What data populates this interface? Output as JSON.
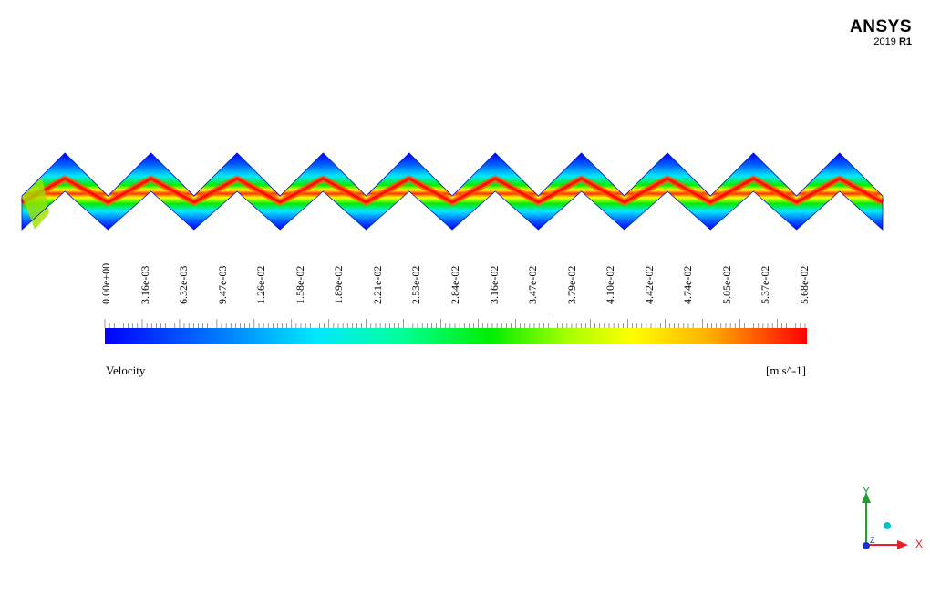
{
  "logo": {
    "brand": "ANSYS",
    "version_year": "2019",
    "version_release": "R1"
  },
  "legend": {
    "variable": "Velocity",
    "unit": "[m s^-1]",
    "ticks": [
      "0.00e+00",
      "3.16e-03",
      "6.32e-03",
      "9.47e-03",
      "1.26e-02",
      "1.58e-02",
      "1.89e-02",
      "2.21e-02",
      "2.53e-02",
      "2.84e-02",
      "3.16e-02",
      "3.47e-02",
      "3.79e-02",
      "4.10e-02",
      "4.42e-02",
      "4.74e-02",
      "5.05e-02",
      "5.37e-02",
      "5.68e-02"
    ],
    "colormap": [
      "#0000ff",
      "#00e8ff",
      "#00ee00",
      "#ffff00",
      "#ff0000"
    ]
  },
  "channel": {
    "zigzag_periods": 10
  },
  "axes": {
    "x": "X",
    "y": "Y",
    "z": "Z",
    "x_color": "#e8202a",
    "y_color": "#1fa02a",
    "z_color": "#1c2fd6"
  }
}
